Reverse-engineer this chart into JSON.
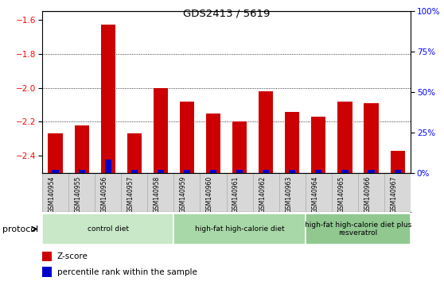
{
  "title": "GDS2413 / 5619",
  "samples": [
    "GSM140954",
    "GSM140955",
    "GSM140956",
    "GSM140957",
    "GSM140958",
    "GSM140959",
    "GSM140960",
    "GSM140961",
    "GSM140962",
    "GSM140963",
    "GSM140964",
    "GSM140965",
    "GSM140966",
    "GSM140967"
  ],
  "zscore": [
    -2.27,
    -2.22,
    -1.63,
    -2.27,
    -2.0,
    -2.08,
    -2.15,
    -2.2,
    -2.02,
    -2.14,
    -2.17,
    -2.08,
    -2.09,
    -2.37
  ],
  "percentile": [
    2,
    2,
    8,
    2,
    2,
    2,
    2,
    2,
    2,
    2,
    2,
    2,
    2,
    2
  ],
  "ylim_left": [
    -2.5,
    -1.55
  ],
  "ylim_right": [
    0,
    100
  ],
  "yticks_left": [
    -2.4,
    -2.2,
    -2.0,
    -1.8,
    -1.6
  ],
  "yticks_right": [
    0,
    25,
    50,
    75,
    100
  ],
  "groups": [
    {
      "label": "control diet",
      "start": 0,
      "end": 5,
      "color": "#c8e8c8"
    },
    {
      "label": "high-fat high-calorie diet",
      "start": 5,
      "end": 10,
      "color": "#a8d8a8"
    },
    {
      "label": "high-fat high-calorie diet plus\nresveratrol",
      "start": 10,
      "end": 14,
      "color": "#90c890"
    }
  ],
  "zscore_color": "#cc0000",
  "percentile_color": "#0000cc",
  "bg_color": "#d8d8d8",
  "plot_bg": "#ffffff",
  "bar_width": 0.55,
  "legend_zscore": "Z-score",
  "legend_percentile": "percentile rank within the sample",
  "protocol_label": "protocol"
}
